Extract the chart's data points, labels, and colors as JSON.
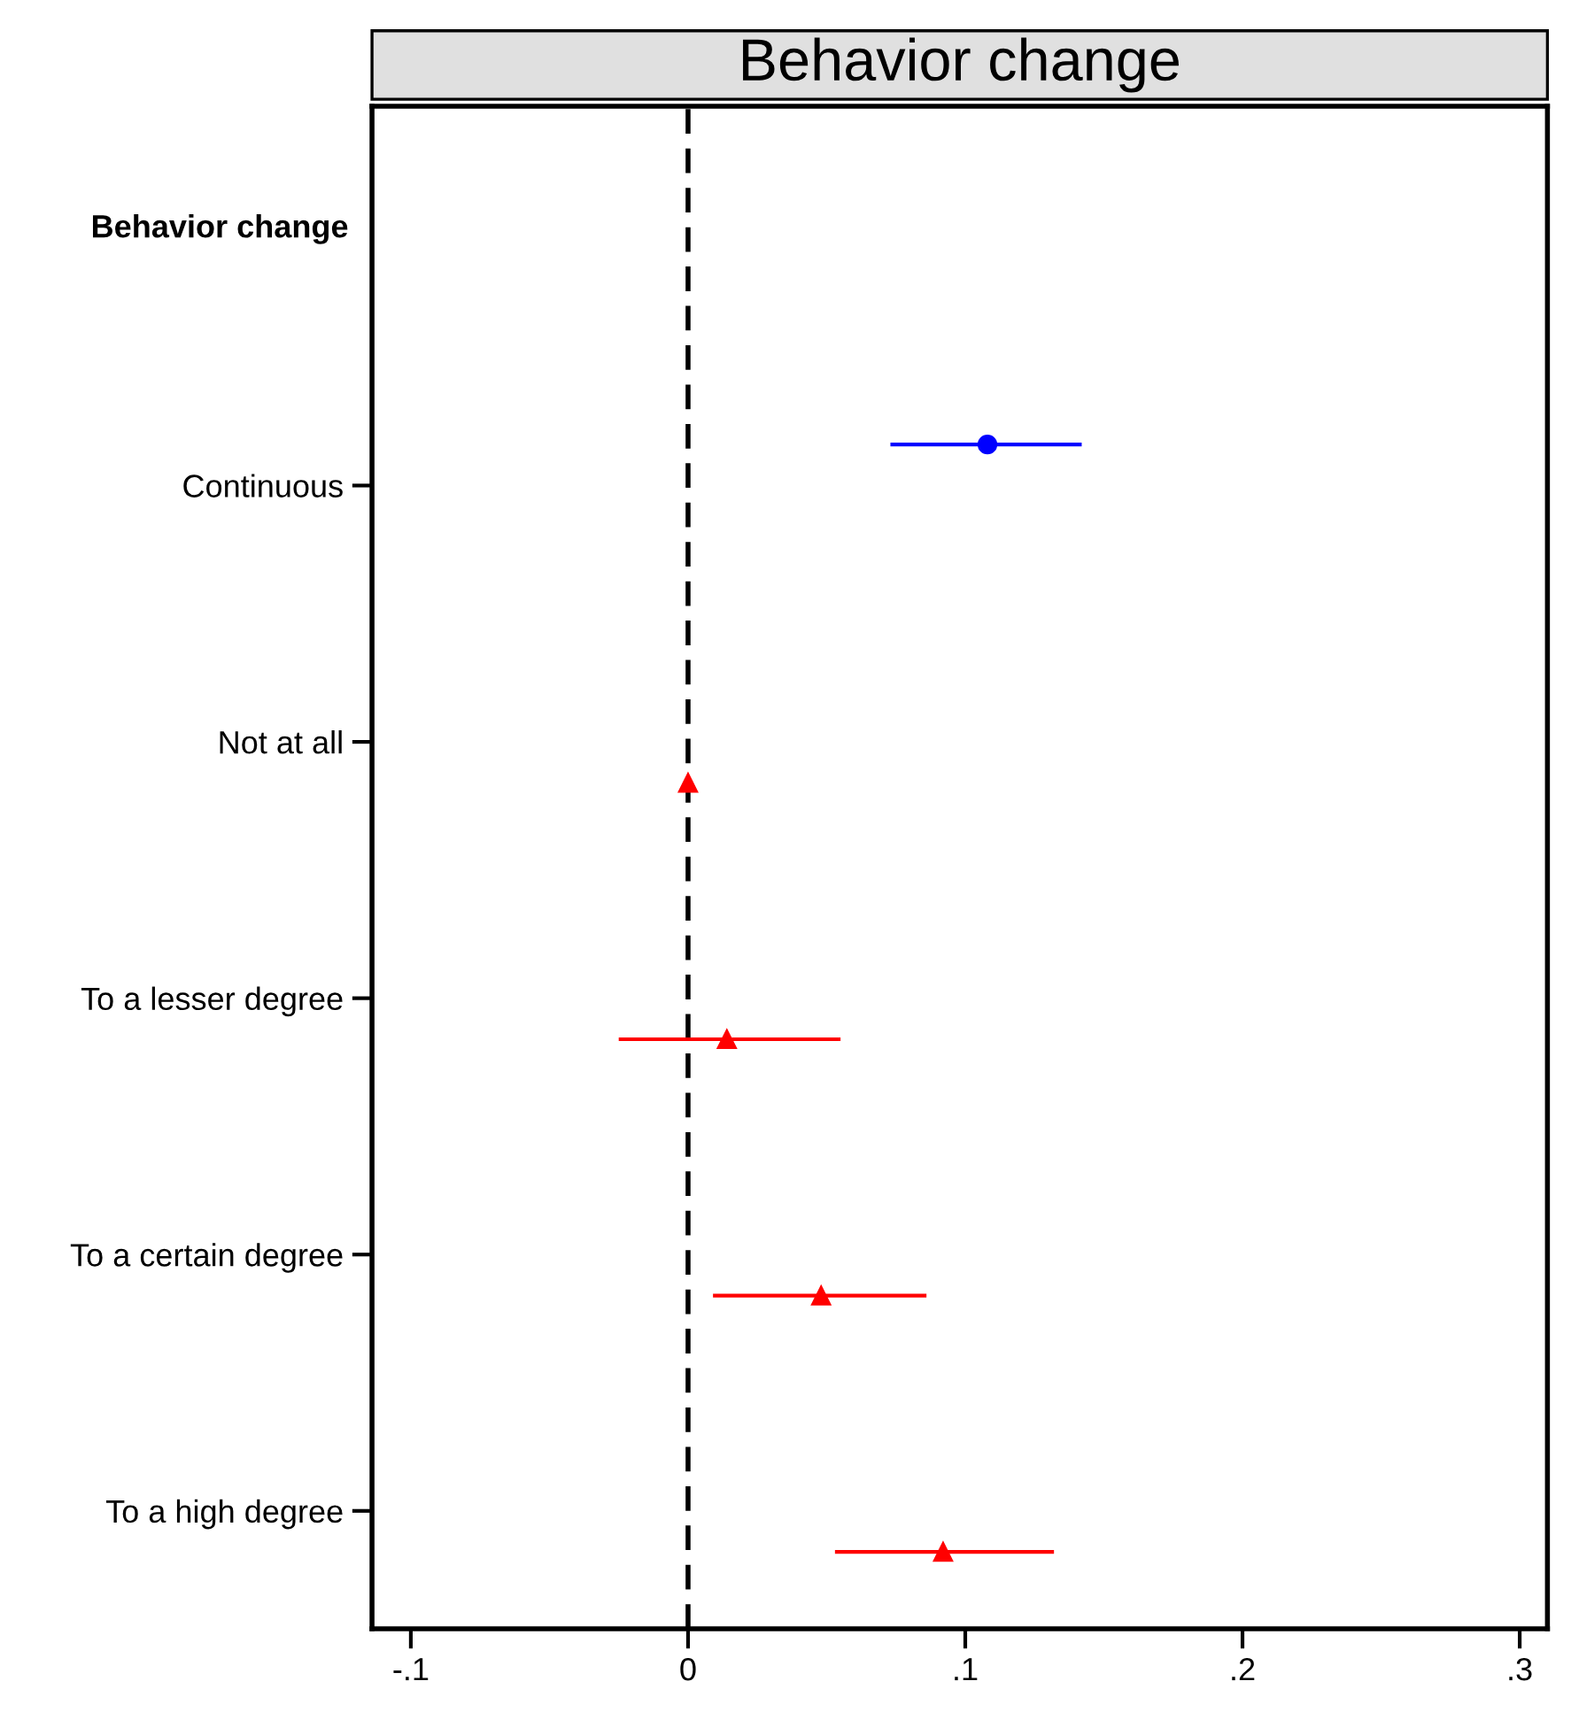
{
  "chart_data": {
    "type": "scatter",
    "orientation": "horizontal",
    "title": "Behavior change",
    "annotations": [
      "Behavior change"
    ],
    "categories": [
      "Continuous",
      "Not at all",
      "To a lesser degree",
      "To a certain degree",
      "To a high degree"
    ],
    "series": [
      {
        "color": "#0000ff",
        "marker": "circle",
        "values": [
          0.108,
          null,
          null,
          null,
          null
        ],
        "errors": [
          [
            0.073,
            0.142
          ],
          null,
          null,
          null,
          null
        ]
      },
      {
        "color": "#ff0000",
        "marker": "triangle",
        "values": [
          null,
          0.0,
          0.014,
          0.048,
          0.092
        ],
        "errors": [
          null,
          null,
          [
            -0.025,
            0.055
          ],
          [
            0.009,
            0.086
          ],
          [
            0.053,
            0.132
          ]
        ]
      }
    ],
    "xlim": [
      -0.114,
      0.31
    ],
    "xticks": [
      {
        "value": -0.1,
        "label": "-.1"
      },
      0,
      {
        "value": 0.1,
        "label": ".1"
      },
      {
        "value": 0.2,
        "label": ".2"
      },
      {
        "value": 0.3,
        "label": ".3"
      }
    ],
    "ref_lines": [
      {
        "axis": "x",
        "value": 0,
        "color": "#000000",
        "line_style": "dashed"
      }
    ],
    "grid": false,
    "legend": false
  }
}
